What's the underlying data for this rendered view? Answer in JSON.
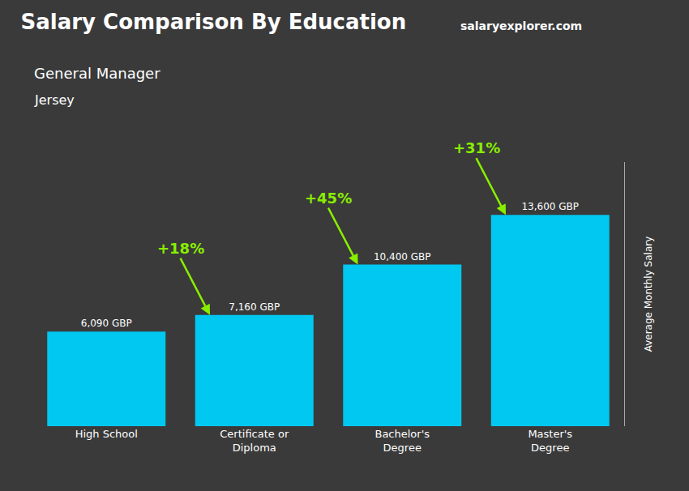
{
  "chart_data": {
    "type": "bar",
    "title": "Salary Comparison By Education",
    "subtitle": "General Manager",
    "location": "Jersey",
    "watermark": [
      "salary",
      "explorer",
      ".com"
    ],
    "ylabel": "Average Monthly Salary",
    "categories": [
      "High School",
      "Certificate or\nDiploma",
      "Bachelor's\nDegree",
      "Master's\nDegree"
    ],
    "values": [
      6090,
      7160,
      10400,
      13600
    ],
    "value_labels": [
      "6,090 GBP",
      "7,160 GBP",
      "10,400 GBP",
      "13,600 GBP"
    ],
    "data_labels": true,
    "annotations": [
      {
        "text": "+18%",
        "from": "High School",
        "to": "Certificate or\nDiploma",
        "color": "#88ee00"
      },
      {
        "text": "+45%",
        "from": "Certificate or\nDiploma",
        "to": "Bachelor's\nDegree",
        "color": "#88ee00"
      },
      {
        "text": "+31%",
        "from": "Bachelor's\nDegree",
        "to": "Master's\nDegree",
        "color": "#88ee00"
      }
    ],
    "color": "#00c8f0",
    "ylim": [
      0,
      17000
    ],
    "yticks": [],
    "grid": false,
    "tick_labels": "x"
  }
}
